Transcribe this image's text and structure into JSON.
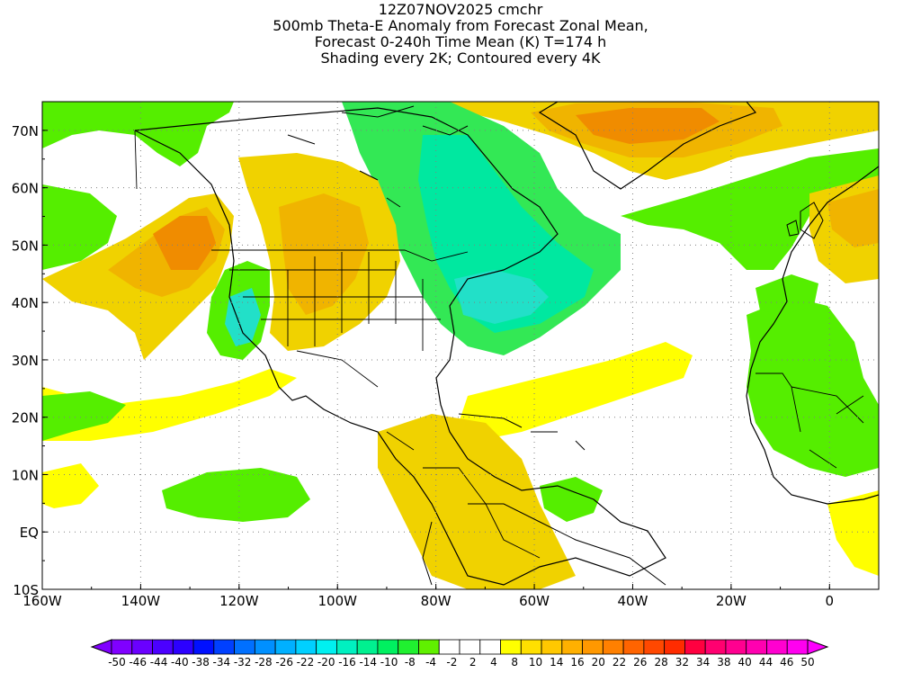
{
  "title": {
    "line1": "12Z07NOV2025 cmchr",
    "line2": "500mb Theta-E Anomaly from Forecast Zonal Mean,",
    "line3": "Forecast 0-240h Time Mean (K) T=174 h",
    "line4": "Shading every 2K; Contoured every 4K"
  },
  "map": {
    "lon_range": [
      -160,
      10
    ],
    "lat_range": [
      -10,
      75
    ],
    "x_ticks": [
      {
        "lon": -160,
        "label": "160W"
      },
      {
        "lon": -140,
        "label": "140W"
      },
      {
        "lon": -120,
        "label": "120W"
      },
      {
        "lon": -100,
        "label": "100W"
      },
      {
        "lon": -80,
        "label": "80W"
      },
      {
        "lon": -60,
        "label": "60W"
      },
      {
        "lon": -40,
        "label": "40W"
      },
      {
        "lon": -20,
        "label": "20W"
      },
      {
        "lon": 0,
        "label": "0"
      }
    ],
    "y_ticks": [
      {
        "lat": 70,
        "label": "70N"
      },
      {
        "lat": 60,
        "label": "60N"
      },
      {
        "lat": 50,
        "label": "50N"
      },
      {
        "lat": 40,
        "label": "40N"
      },
      {
        "lat": 30,
        "label": "30N"
      },
      {
        "lat": 20,
        "label": "20N"
      },
      {
        "lat": 10,
        "label": "10N"
      },
      {
        "lat": 0,
        "label": "EQ"
      },
      {
        "lat": -10,
        "label": "10S"
      }
    ],
    "grid": true
  },
  "colorbar": {
    "labels": [
      "-50",
      "-46",
      "-44",
      "-40",
      "-38",
      "-34",
      "-32",
      "-28",
      "-26",
      "-22",
      "-20",
      "-16",
      "-14",
      "-10",
      "-8",
      "-4",
      "-2",
      "2",
      "4",
      "8",
      "10",
      "14",
      "16",
      "20",
      "22",
      "26",
      "28",
      "32",
      "34",
      "38",
      "40",
      "44",
      "46",
      "50"
    ],
    "colors": [
      "#8000ff",
      "#6a00ff",
      "#4b00ff",
      "#2c00ff",
      "#0010ff",
      "#0040ff",
      "#0070ff",
      "#0090ff",
      "#00b0ff",
      "#00d0ff",
      "#00f0f0",
      "#00f0c0",
      "#00f090",
      "#00f060",
      "#20f030",
      "#60f000",
      "#ffffff",
      "#ffffff",
      "#ffffff",
      "#ffff00",
      "#ffe000",
      "#ffc800",
      "#ffb000",
      "#ff9800",
      "#ff8000",
      "#ff6400",
      "#ff4800",
      "#ff2c00",
      "#ff0040",
      "#ff0070",
      "#ff0090",
      "#ff00b0",
      "#ff00d0",
      "#ff00f0"
    ],
    "under_color": "#8000ff",
    "over_color": "#ff00ff"
  },
  "legend_colors": {
    "green": "#55ee00",
    "light_green": "#33e855",
    "teal": "#00e8a0",
    "cyan": "#22e0c8",
    "yellow": "#ffff00",
    "gold": "#f0d200",
    "orange_light": "#f0b400",
    "orange": "#f08c00"
  }
}
